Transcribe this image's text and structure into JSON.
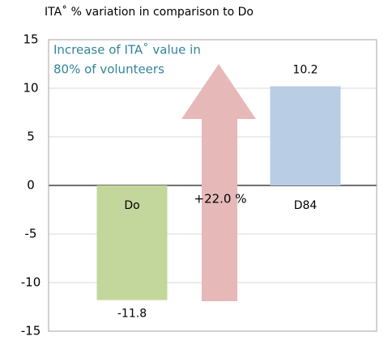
{
  "chart_data": {
    "type": "bar",
    "title": "ITA˚ % variation in comparison to Do",
    "categories": [
      "Do",
      "D84"
    ],
    "values": [
      -11.8,
      10.2
    ],
    "colors": [
      "#c3d69b",
      "#b9cde5"
    ],
    "ylim": [
      -15,
      15
    ],
    "yticks": [
      -15,
      -10,
      -5,
      0,
      5,
      10,
      15
    ],
    "grid": true,
    "annotation_lines": [
      "Increase of ITA˚ value in",
      "80% of volunteers"
    ],
    "difference_label": "+22.0 %"
  }
}
